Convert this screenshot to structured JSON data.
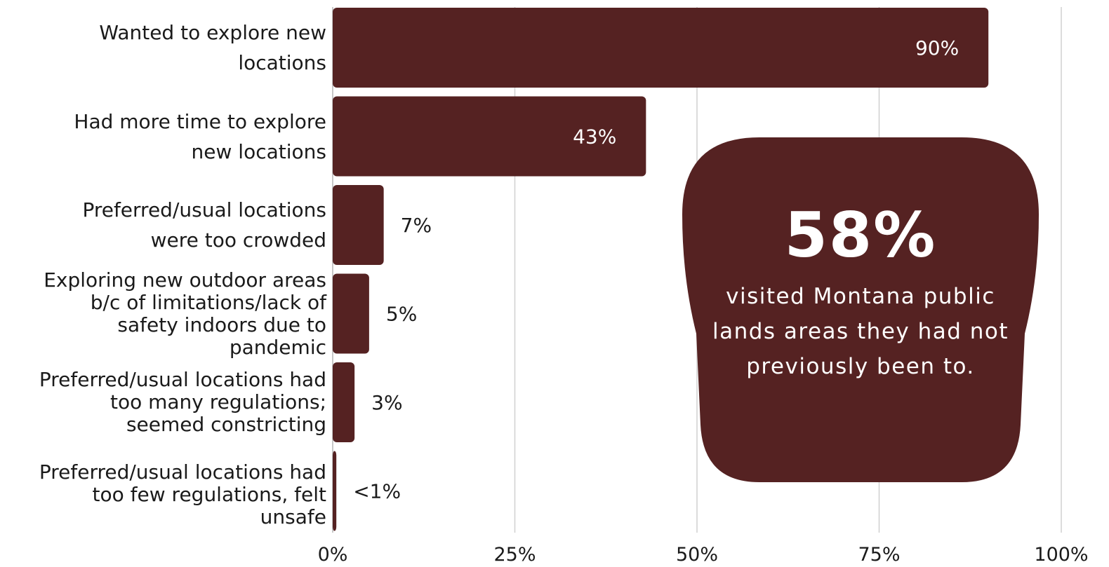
{
  "chart_data": {
    "type": "bar",
    "orientation": "horizontal",
    "categories": [
      "Wanted to explore new\nlocations",
      "Had more time to explore\nnew locations",
      "Preferred/usual locations\nwere too crowded",
      "Exploring new outdoor areas\nb/c of limitations/lack of\nsafety indoors due to\npandemic",
      "Preferred/usual locations had\ntoo many regulations;\nseemed constricting",
      "Preferred/usual locations had\ntoo few regulations, felt\nunsafe"
    ],
    "values": [
      90,
      43,
      7,
      5,
      3,
      0.5
    ],
    "data_labels": [
      "90%",
      "43%",
      "7%",
      "5%",
      "3%",
      "<1%"
    ],
    "x_ticks": [
      0,
      25,
      50,
      75,
      100
    ],
    "x_tick_labels": [
      "0%",
      "25%",
      "50%",
      "75%",
      "100%"
    ],
    "xlim": [
      0,
      100
    ],
    "grid": true,
    "bar_color": "#552222",
    "title": "",
    "xlabel": "",
    "ylabel": ""
  },
  "callout": {
    "value": "58%",
    "text": "visited Montana public lands areas they had not previously been to."
  },
  "colors": {
    "bar": "#552222",
    "grid": "#d0d0d0",
    "label_inside": "#ffffff",
    "label_outside": "#1a1a1a"
  }
}
